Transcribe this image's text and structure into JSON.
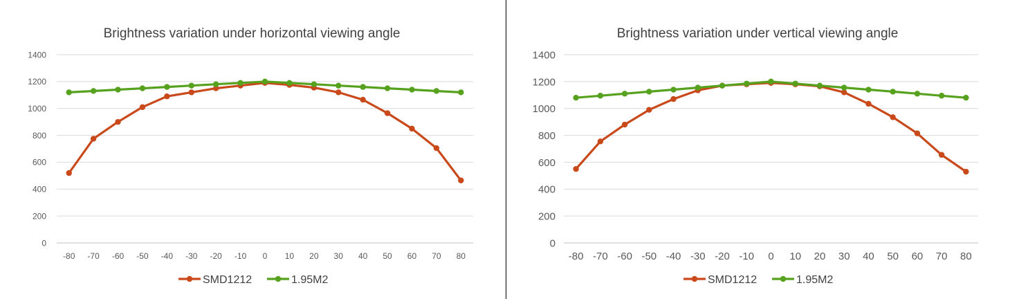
{
  "chart_data": [
    {
      "type": "line",
      "title": "Brightness variation under horizontal viewing angle",
      "x": [
        -80,
        -70,
        -60,
        -50,
        -40,
        -30,
        -20,
        -10,
        0,
        10,
        20,
        30,
        40,
        50,
        60,
        70,
        80
      ],
      "x_tick_labels": [
        "-80",
        "-70",
        "-60",
        "-50",
        "-40",
        "-30",
        "-20",
        "-10",
        "0",
        "10",
        "20",
        "30",
        "40",
        "50",
        "60",
        "70",
        "80"
      ],
      "ylim": [
        0,
        1400
      ],
      "y_tick_labels": [
        "0",
        "200",
        "400",
        "600",
        "800",
        "1000",
        "1200",
        "1400"
      ],
      "y_ticks": [
        0,
        200,
        400,
        600,
        800,
        1000,
        1200,
        1400
      ],
      "grid": true,
      "legend_position": "bottom",
      "series": [
        {
          "name": "SMD1212",
          "color": "#C9491A",
          "values": [
            520,
            775,
            900,
            1010,
            1090,
            1120,
            1150,
            1170,
            1190,
            1175,
            1155,
            1120,
            1065,
            965,
            850,
            705,
            465
          ]
        },
        {
          "name": "1.95M2",
          "color": "#56A11D",
          "values": [
            1120,
            1130,
            1140,
            1150,
            1160,
            1170,
            1180,
            1190,
            1200,
            1190,
            1180,
            1170,
            1160,
            1150,
            1140,
            1130,
            1120
          ]
        }
      ]
    },
    {
      "type": "line",
      "title": "Brightness variation under vertical viewing angle",
      "x": [
        -80,
        -70,
        -60,
        -50,
        -40,
        -30,
        -20,
        -10,
        0,
        10,
        20,
        30,
        40,
        50,
        60,
        70,
        80
      ],
      "x_tick_labels": [
        "-80",
        "-70",
        "-60",
        "-50",
        "-40",
        "-30",
        "-20",
        "-10",
        "0",
        "10",
        "20",
        "30",
        "40",
        "50",
        "60",
        "70",
        "80"
      ],
      "ylim": [
        0,
        1400
      ],
      "y_tick_labels": [
        "0",
        "200",
        "400",
        "600",
        "800",
        "1000",
        "1200",
        "1400"
      ],
      "y_ticks": [
        0,
        200,
        400,
        600,
        800,
        1000,
        1200,
        1400
      ],
      "grid": true,
      "legend_position": "bottom",
      "series": [
        {
          "name": "SMD1212",
          "color": "#C9491A",
          "values": [
            550,
            755,
            880,
            990,
            1070,
            1135,
            1170,
            1180,
            1190,
            1180,
            1165,
            1120,
            1035,
            935,
            815,
            655,
            530
          ]
        },
        {
          "name": "1.95M2",
          "color": "#56A11D",
          "values": [
            1080,
            1095,
            1110,
            1125,
            1140,
            1155,
            1170,
            1185,
            1200,
            1185,
            1170,
            1155,
            1140,
            1125,
            1110,
            1095,
            1080
          ]
        }
      ]
    }
  ]
}
